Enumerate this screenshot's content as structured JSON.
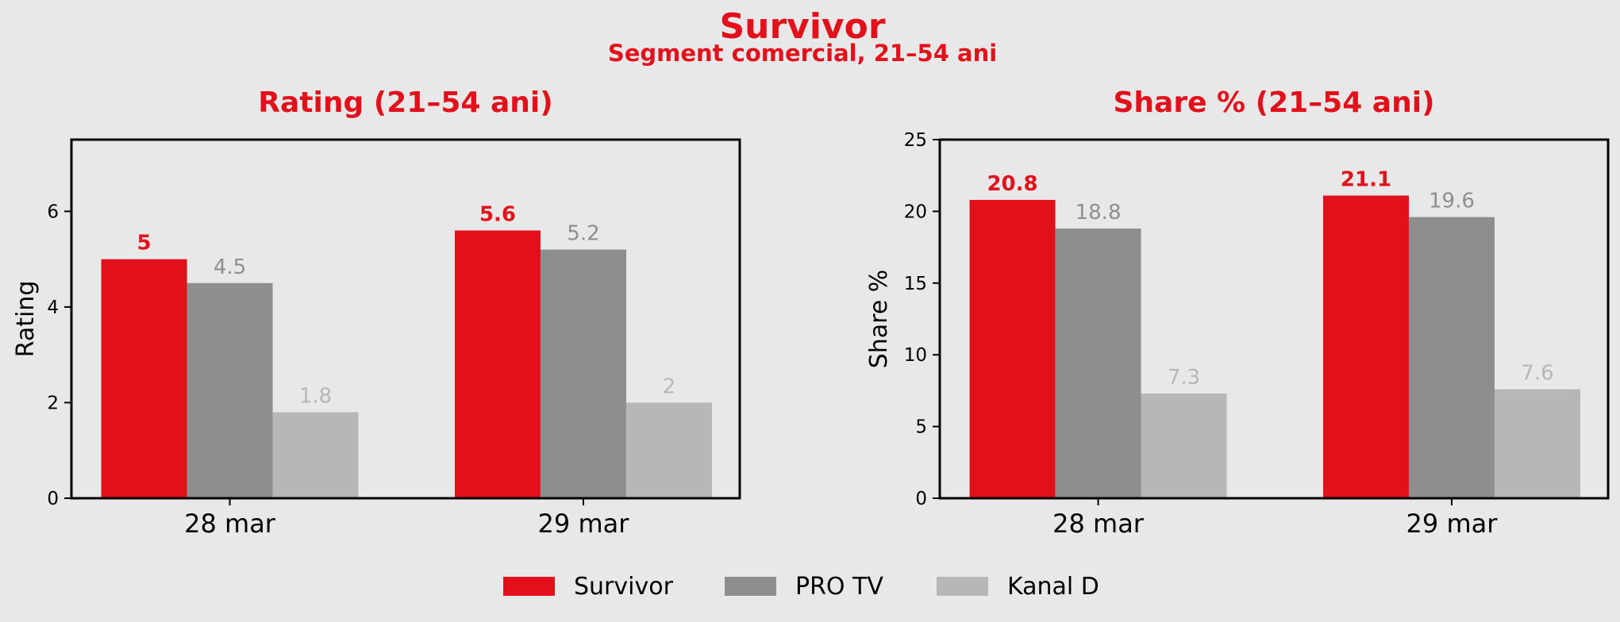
{
  "title": "Survivor",
  "subtitle": "Segment comercial, 21–54 ani",
  "colors": {
    "background": "#e8e8e8",
    "accent": "#e2101b",
    "survivor": "#e2101b",
    "pro_tv": "#8e8e8e",
    "kanal_d": "#b7b7b7",
    "axis": "#000000"
  },
  "legend": {
    "placement": "bottom-center",
    "items": [
      "Survivor",
      "PRO TV",
      "Kanal D"
    ]
  },
  "chart_data": [
    {
      "type": "bar",
      "title": "Rating (21–54 ani)",
      "xlabel": "",
      "ylabel": "Rating",
      "categories": [
        "28 mar",
        "29 mar"
      ],
      "ylim": [
        0,
        7.5
      ],
      "yticks": [
        0,
        2,
        4,
        6
      ],
      "grid": false,
      "series": [
        {
          "name": "Survivor",
          "values": [
            5,
            5.6
          ],
          "labels": [
            "5",
            "5.6"
          ]
        },
        {
          "name": "PRO TV",
          "values": [
            4.5,
            5.2
          ],
          "labels": [
            "4.5",
            "5.2"
          ]
        },
        {
          "name": "Kanal D",
          "values": [
            1.8,
            2
          ],
          "labels": [
            "1.8",
            "2"
          ]
        }
      ]
    },
    {
      "type": "bar",
      "title": "Share % (21–54 ani)",
      "xlabel": "",
      "ylabel": "Share %",
      "categories": [
        "28 mar",
        "29 mar"
      ],
      "ylim": [
        0,
        25
      ],
      "yticks": [
        0,
        5,
        10,
        15,
        20,
        25
      ],
      "grid": false,
      "series": [
        {
          "name": "Survivor",
          "values": [
            20.8,
            21.1
          ],
          "labels": [
            "20.8",
            "21.1"
          ]
        },
        {
          "name": "PRO TV",
          "values": [
            18.8,
            19.6
          ],
          "labels": [
            "18.8",
            "19.6"
          ]
        },
        {
          "name": "Kanal D",
          "values": [
            7.3,
            7.6
          ],
          "labels": [
            "7.3",
            "7.6"
          ]
        }
      ]
    }
  ]
}
